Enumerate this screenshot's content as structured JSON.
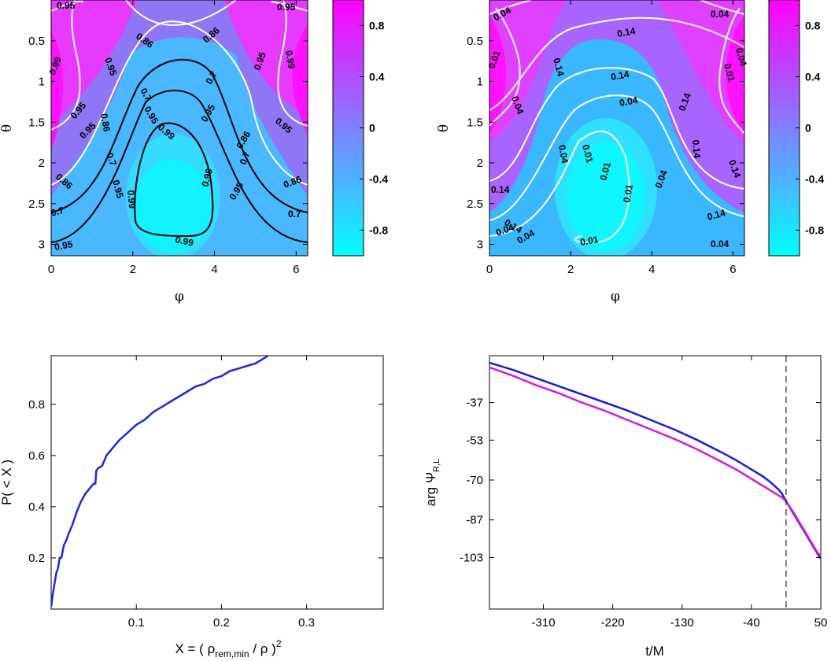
{
  "chart_data": [
    {
      "type": "heatmap",
      "title": "",
      "xlabel": "φ",
      "ylabel": "θ",
      "xlim": [
        0,
        6.283
      ],
      "ylim": [
        3.14,
        0
      ],
      "xticks": [
        "0",
        "2",
        "4",
        "6"
      ],
      "xtick_values": [
        0,
        2,
        4,
        6
      ],
      "yticks": [
        "0.5",
        "1",
        "1.5",
        "2",
        "2.5",
        "3"
      ],
      "ytick_values": [
        0.5,
        1,
        1.5,
        2,
        2.5,
        3
      ],
      "colorbar": {
        "range": [
          -1,
          1
        ],
        "ticks": [
          "0.8",
          "0.4",
          "0",
          "-0.4",
          "-0.8"
        ],
        "tick_values": [
          0.8,
          0.4,
          0,
          -0.4,
          -0.8
        ],
        "low_color": "#00ffff",
        "high_color": "#ff00ff"
      },
      "contour_labels": [
        "0.95",
        "0.95",
        "0.86",
        "0.86",
        "0.99",
        "0.95",
        "0.95",
        "0.99",
        "0.7",
        "0.7",
        "0.95",
        "0.86",
        "0.95",
        "0.95",
        "0.95",
        "0.99",
        "0.95",
        "0.7",
        "0.86",
        "0.99",
        "0.95",
        "0.86",
        "0.95",
        "0.99",
        "0.7",
        "0.86",
        "0.7",
        "0.95",
        "0.99",
        "0.7"
      ]
    },
    {
      "type": "heatmap",
      "title": "",
      "xlabel": "φ",
      "ylabel": "θ",
      "xlim": [
        0,
        6.283
      ],
      "ylim": [
        3.14,
        0
      ],
      "xticks": [
        "0",
        "2",
        "4",
        "6"
      ],
      "xtick_values": [
        0,
        2,
        4,
        6
      ],
      "yticks": [
        "0.5",
        "1",
        "1.5",
        "2",
        "2.5",
        "3"
      ],
      "ytick_values": [
        0.5,
        1,
        1.5,
        2,
        2.5,
        3
      ],
      "colorbar": {
        "range": [
          -1,
          1
        ],
        "ticks": [
          "0.8",
          "0.4",
          "0",
          "-0.4",
          "-0.8"
        ],
        "tick_values": [
          0.8,
          0.4,
          0,
          -0.4,
          -0.8
        ],
        "low_color": "#00ffff",
        "high_color": "#ff00ff"
      },
      "contour_labels": [
        "0.04",
        "0.04",
        "0.14",
        "0.01",
        "0.01",
        "0.14",
        "0.14",
        "0.04",
        "0.04",
        "0.14",
        "0.04",
        "0.01",
        "0.14",
        "0.04",
        "0.01",
        "0.04",
        "0.14",
        "0.14",
        "0.04",
        "0.01",
        "0.14",
        "0.14",
        "0.04",
        "0.01",
        "0.04"
      ]
    },
    {
      "type": "line",
      "title": "",
      "xlabel_main": "X = ( ρ",
      "xlabel_sub": "rem,min",
      "xlabel_mid": " / ρ )",
      "xlabel_sup": "2",
      "ylabel": "P( < X )",
      "xlim": [
        0,
        0.39
      ],
      "ylim": [
        0,
        0.99
      ],
      "xticks": [
        "0.1",
        "0.2",
        "0.3"
      ],
      "xtick_values": [
        0.1,
        0.2,
        0.3
      ],
      "yticks": [
        "0.2",
        "0.4",
        "0.6",
        "0.8"
      ],
      "ytick_values": [
        0.2,
        0.4,
        0.6,
        0.8
      ],
      "series": [
        {
          "name": "P(<X)",
          "color": "#1a2bd8",
          "x": [
            0.0,
            0.002,
            0.004,
            0.006,
            0.008,
            0.01,
            0.012,
            0.015,
            0.018,
            0.02,
            0.025,
            0.03,
            0.035,
            0.04,
            0.045,
            0.05,
            0.052,
            0.053,
            0.055,
            0.06,
            0.065,
            0.07,
            0.08,
            0.09,
            0.1,
            0.11,
            0.12,
            0.13,
            0.14,
            0.15,
            0.16,
            0.17,
            0.18,
            0.19,
            0.2,
            0.21,
            0.22,
            0.23,
            0.24,
            0.25,
            0.255
          ],
          "y": [
            0.01,
            0.06,
            0.1,
            0.14,
            0.16,
            0.2,
            0.2,
            0.25,
            0.27,
            0.29,
            0.33,
            0.38,
            0.42,
            0.45,
            0.47,
            0.49,
            0.49,
            0.54,
            0.55,
            0.56,
            0.6,
            0.62,
            0.66,
            0.69,
            0.72,
            0.74,
            0.77,
            0.79,
            0.81,
            0.83,
            0.85,
            0.87,
            0.88,
            0.9,
            0.91,
            0.93,
            0.94,
            0.95,
            0.96,
            0.98,
            0.99
          ]
        }
      ]
    },
    {
      "type": "line",
      "title": "",
      "xlabel": "t/M",
      "ylabel_main": "arg Ψ",
      "ylabel_sub": "R,L",
      "xlim": [
        -380,
        50
      ],
      "ylim": [
        -125,
        -17
      ],
      "xticks": [
        "-310",
        "-220",
        "-130",
        "-40",
        "50"
      ],
      "xtick_values": [
        -310,
        -220,
        -130,
        -40,
        50
      ],
      "yticks": [
        "-37",
        "-53",
        "-70",
        "-87",
        "-103"
      ],
      "ytick_values": [
        -37,
        -53,
        -70,
        -87,
        -103
      ],
      "vline": 5,
      "series": [
        {
          "name": "R",
          "color": "#1a1adb",
          "x": [
            -380,
            -350,
            -320,
            -290,
            -260,
            -230,
            -200,
            -170,
            -140,
            -110,
            -80,
            -60,
            -40,
            -25,
            -15,
            -5,
            0,
            5,
            15,
            25,
            35,
            45,
            50
          ],
          "y": [
            -20,
            -23,
            -26.5,
            -30,
            -33.5,
            -37,
            -40.5,
            -44.5,
            -48.5,
            -53,
            -58,
            -61.5,
            -65.5,
            -68.5,
            -71,
            -74,
            -76,
            -79,
            -84.5,
            -90,
            -95.5,
            -101,
            -103.5
          ]
        },
        {
          "name": "L",
          "color": "#d81ad8",
          "x": [
            -380,
            -350,
            -320,
            -290,
            -260,
            -230,
            -200,
            -170,
            -140,
            -110,
            -80,
            -60,
            -40,
            -25,
            -15,
            -5,
            0,
            5,
            15,
            25,
            35,
            45,
            50
          ],
          "y": [
            -22,
            -25.5,
            -29.5,
            -33,
            -37,
            -40.5,
            -44.5,
            -48.5,
            -52.5,
            -57,
            -62,
            -65.5,
            -69.5,
            -72.5,
            -74.5,
            -76.5,
            -77.5,
            -79,
            -84,
            -89.5,
            -95,
            -100.5,
            -102.5
          ]
        }
      ]
    }
  ]
}
